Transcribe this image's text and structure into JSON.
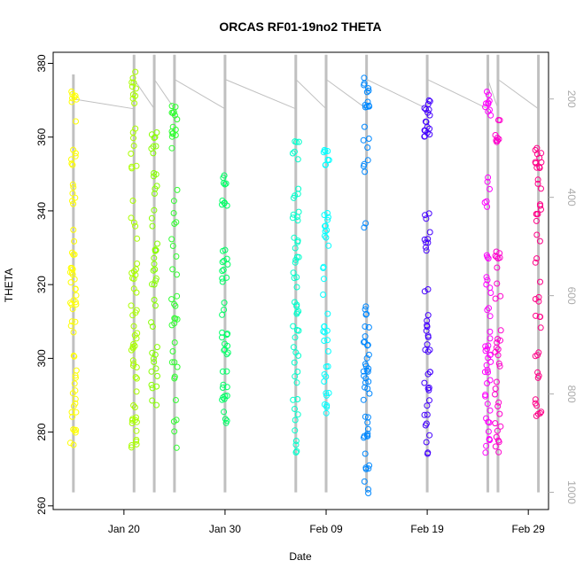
{
  "chart_data": {
    "type": "scatter",
    "title": "ORCAS RF01-19no2 THETA",
    "xlabel": "Date",
    "ylabel": "THETA",
    "x_axis": {
      "min": "2016-01-13",
      "max": "2016-03-02",
      "ticks": [
        {
          "date": "2016-01-20",
          "label": "Jan 20"
        },
        {
          "date": "2016-01-30",
          "label": "Jan 30"
        },
        {
          "date": "2016-02-09",
          "label": "Feb 09"
        },
        {
          "date": "2016-02-19",
          "label": "Feb 19"
        },
        {
          "date": "2016-02-29",
          "label": "Feb 29"
        }
      ]
    },
    "y_axis": {
      "min": 259,
      "max": 383,
      "ticks": [
        260,
        280,
        300,
        320,
        340,
        360,
        380
      ]
    },
    "right_axis": {
      "label_color": "#aaaaaa",
      "reversed": true,
      "min": 105,
      "max": 1035,
      "ticks": [
        200,
        400,
        600,
        800,
        1000
      ]
    },
    "pressure_track_color": "#c0c0c0",
    "series": [
      {
        "date": "2016-01-15",
        "color": "#ffff00",
        "theta_min": 274,
        "theta_max": 375,
        "clusters": [
          [
            362,
            375,
            8
          ],
          [
            340,
            357,
            12
          ],
          [
            300,
            335,
            28
          ],
          [
            284,
            300,
            12
          ],
          [
            274,
            284,
            6
          ]
        ],
        "pressure_min": 150,
        "pressure_max": 1000
      },
      {
        "date": "2016-01-21",
        "color": "#aaff00",
        "theta_min": 274,
        "theta_max": 378,
        "clusters": [
          [
            368,
            378,
            10
          ],
          [
            350,
            366,
            8
          ],
          [
            315,
            345,
            14
          ],
          [
            286,
            315,
            22
          ],
          [
            274,
            286,
            12
          ]
        ],
        "pressure_min": 110,
        "pressure_max": 1000
      },
      {
        "date": "2016-01-23",
        "color": "#88ff00",
        "theta_min": 287,
        "theta_max": 365,
        "clusters": [
          [
            355,
            365,
            8
          ],
          [
            330,
            355,
            10
          ],
          [
            300,
            330,
            18
          ],
          [
            287,
            300,
            10
          ]
        ],
        "pressure_min": 110,
        "pressure_max": 1000
      },
      {
        "date": "2016-01-25",
        "color": "#33ff33",
        "theta_min": 272,
        "theta_max": 370,
        "clusters": [
          [
            360,
            370,
            14
          ],
          [
            330,
            360,
            8
          ],
          [
            300,
            330,
            14
          ],
          [
            272,
            300,
            10
          ]
        ],
        "pressure_min": 110,
        "pressure_max": 1000
      },
      {
        "date": "2016-01-30",
        "color": "#00ff66",
        "theta_min": 281,
        "theta_max": 350,
        "clusters": [
          [
            340,
            350,
            10
          ],
          [
            315,
            330,
            12
          ],
          [
            295,
            315,
            14
          ],
          [
            281,
            295,
            12
          ]
        ],
        "pressure_min": 110,
        "pressure_max": 1000
      },
      {
        "date": "2016-02-06",
        "color": "#00ffcc",
        "theta_min": 273,
        "theta_max": 361,
        "clusters": [
          [
            340,
            361,
            10
          ],
          [
            315,
            340,
            18
          ],
          [
            290,
            315,
            16
          ],
          [
            273,
            290,
            10
          ]
        ],
        "pressure_min": 110,
        "pressure_max": 1000
      },
      {
        "date": "2016-02-09",
        "color": "#00ffff",
        "theta_min": 284,
        "theta_max": 357,
        "clusters": [
          [
            350,
            357,
            8
          ],
          [
            320,
            340,
            14
          ],
          [
            295,
            320,
            14
          ],
          [
            284,
            295,
            8
          ]
        ],
        "pressure_min": 110,
        "pressure_max": 1000
      },
      {
        "date": "2016-02-13",
        "color": "#0088ff",
        "theta_min": 263,
        "theta_max": 377,
        "clusters": [
          [
            368,
            377,
            12
          ],
          [
            335,
            368,
            10
          ],
          [
            295,
            315,
            20
          ],
          [
            275,
            295,
            16
          ],
          [
            263,
            275,
            8
          ]
        ],
        "pressure_min": 110,
        "pressure_max": 1000
      },
      {
        "date": "2016-02-19",
        "color": "#4400ff",
        "theta_min": 274,
        "theta_max": 370,
        "clusters": [
          [
            360,
            370,
            18
          ],
          [
            320,
            340,
            10
          ],
          [
            290,
            320,
            20
          ],
          [
            274,
            290,
            10
          ]
        ],
        "pressure_min": 110,
        "pressure_max": 1000
      },
      {
        "date": "2016-02-25",
        "color": "#ff00ff",
        "theta_min": 269,
        "theta_max": 373,
        "clusters": [
          [
            364,
            373,
            10
          ],
          [
            340,
            350,
            6
          ],
          [
            300,
            330,
            20
          ],
          [
            269,
            300,
            20
          ]
        ],
        "pressure_min": 110,
        "pressure_max": 1000
      },
      {
        "date": "2016-02-26",
        "color": "#ff00cc",
        "theta_min": 274,
        "theta_max": 365,
        "clusters": [
          [
            355,
            365,
            8
          ],
          [
            300,
            330,
            18
          ],
          [
            274,
            300,
            16
          ]
        ],
        "pressure_min": 110,
        "pressure_max": 1000
      },
      {
        "date": "2016-03-01",
        "color": "#ff0088",
        "theta_min": 284,
        "theta_max": 358,
        "clusters": [
          [
            345,
            358,
            14
          ],
          [
            310,
            345,
            18
          ],
          [
            284,
            310,
            14
          ]
        ],
        "pressure_min": 110,
        "pressure_max": 1000
      }
    ],
    "grid": false,
    "legend": "none"
  }
}
